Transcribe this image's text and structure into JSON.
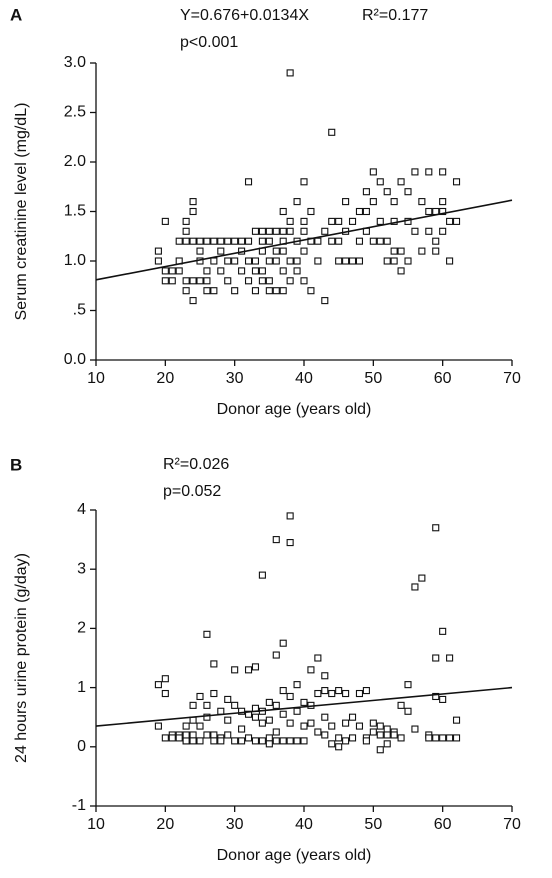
{
  "chart_data": [
    {
      "type": "scatter",
      "panel": "A",
      "annotations": [
        "Y=0.676+0.0134X",
        "R²=0.177",
        "p<0.001"
      ],
      "x_label": "Donor age (years old)",
      "y_label": "Serum creatinine level (mg/dL)",
      "xlim": [
        10,
        70
      ],
      "xticks": [
        10,
        20,
        30,
        40,
        50,
        60,
        70
      ],
      "ylim": [
        0,
        3
      ],
      "yticks": [
        {
          "value": 0,
          "label": "0.0"
        },
        {
          "value": 0.5,
          "label": ".5"
        },
        {
          "value": 1,
          "label": "1.0"
        },
        {
          "value": 1.5,
          "label": "1.5"
        },
        {
          "value": 2,
          "label": "2.0"
        },
        2.5,
        {
          "value": 3,
          "label": "3.0"
        }
      ],
      "x": [
        19,
        19,
        20,
        20,
        20,
        21,
        21,
        22,
        22,
        22,
        23,
        23,
        23,
        23,
        23,
        24,
        24,
        24,
        24,
        24,
        25,
        25,
        25,
        25,
        26,
        26,
        26,
        26,
        27,
        27,
        27,
        28,
        28,
        28,
        29,
        29,
        29,
        30,
        30,
        30,
        31,
        31,
        31,
        32,
        32,
        32,
        32,
        33,
        33,
        33,
        33,
        34,
        34,
        34,
        34,
        34,
        35,
        35,
        35,
        35,
        35,
        36,
        36,
        36,
        36,
        37,
        37,
        37,
        37,
        37,
        37,
        38,
        38,
        38,
        38,
        38,
        39,
        39,
        39,
        39,
        40,
        40,
        40,
        40,
        40,
        41,
        41,
        41,
        42,
        42,
        43,
        43,
        44,
        44,
        44,
        45,
        45,
        45,
        46,
        46,
        46,
        47,
        47,
        48,
        48,
        48,
        49,
        49,
        49,
        50,
        50,
        50,
        51,
        51,
        51,
        52,
        52,
        52,
        53,
        53,
        53,
        53,
        54,
        54,
        54,
        55,
        55,
        55,
        56,
        56,
        57,
        57,
        58,
        58,
        58,
        59,
        59,
        59,
        60,
        60,
        60,
        60,
        61,
        61,
        62,
        62
      ],
      "values": [
        1.1,
        1.0,
        1.4,
        0.9,
        0.8,
        0.8,
        0.9,
        0.9,
        1.0,
        1.2,
        1.3,
        1.4,
        1.2,
        0.7,
        0.8,
        1.5,
        1.6,
        1.2,
        0.8,
        0.6,
        1.1,
        1.0,
        0.8,
        1.2,
        1.2,
        0.9,
        0.8,
        0.7,
        1.2,
        1.0,
        0.7,
        1.2,
        1.1,
        0.9,
        1.2,
        1.0,
        0.8,
        1.2,
        1.0,
        0.7,
        1.2,
        1.1,
        0.9,
        1.8,
        1.2,
        1.0,
        0.8,
        1.3,
        1.0,
        0.9,
        0.7,
        1.3,
        1.2,
        1.1,
        0.9,
        0.8,
        1.3,
        1.2,
        1.0,
        0.8,
        0.7,
        1.3,
        1.1,
        1.0,
        0.7,
        1.5,
        1.3,
        1.2,
        1.1,
        0.9,
        0.7,
        2.9,
        1.4,
        1.3,
        1.0,
        0.8,
        1.6,
        1.2,
        1.0,
        0.9,
        1.8,
        1.4,
        1.3,
        1.1,
        0.8,
        1.5,
        1.2,
        0.7,
        1.2,
        1.0,
        1.3,
        0.6,
        2.3,
        1.4,
        1.2,
        1.4,
        1.2,
        1.0,
        1.6,
        1.3,
        1.0,
        1.4,
        1.0,
        1.5,
        1.2,
        1.0,
        1.7,
        1.5,
        1.3,
        1.9,
        1.6,
        1.2,
        1.8,
        1.4,
        1.2,
        1.7,
        1.2,
        1.0,
        1.6,
        1.4,
        1.1,
        1.0,
        1.8,
        1.1,
        0.9,
        1.7,
        1.4,
        1.0,
        1.9,
        1.3,
        1.6,
        1.1,
        1.9,
        1.5,
        1.3,
        1.5,
        1.2,
        1.1,
        1.9,
        1.6,
        1.5,
        1.3,
        1.4,
        1.0,
        1.8,
        1.4
      ],
      "trend_x": [
        10,
        70
      ],
      "trend_y": [
        0.81,
        1.614
      ]
    },
    {
      "type": "scatter",
      "panel": "B",
      "annotations": [
        "R²=0.026",
        "p=0.052"
      ],
      "x_label": "Donor age (years old)",
      "y_label": "24 hours urine protein (g/day)",
      "xlim": [
        10,
        70
      ],
      "xticks": [
        10,
        20,
        30,
        40,
        50,
        60,
        70
      ],
      "ylim": [
        -1,
        4
      ],
      "yticks": [
        -1,
        0,
        1,
        2,
        3,
        4
      ],
      "x": [
        19,
        19,
        20,
        20,
        20,
        21,
        21,
        22,
        22,
        23,
        23,
        23,
        23,
        24,
        24,
        24,
        24,
        25,
        25,
        25,
        26,
        26,
        26,
        26,
        27,
        27,
        27,
        27,
        28,
        28,
        28,
        29,
        29,
        29,
        30,
        30,
        30,
        31,
        31,
        31,
        32,
        32,
        32,
        33,
        33,
        33,
        33,
        34,
        34,
        34,
        34,
        35,
        35,
        35,
        35,
        36,
        36,
        36,
        36,
        36,
        37,
        37,
        37,
        37,
        38,
        38,
        38,
        38,
        38,
        39,
        39,
        39,
        40,
        40,
        40,
        41,
        41,
        41,
        42,
        42,
        42,
        43,
        43,
        43,
        43,
        44,
        44,
        44,
        45,
        45,
        45,
        46,
        46,
        46,
        47,
        47,
        48,
        48,
        49,
        49,
        49,
        50,
        50,
        51,
        51,
        51,
        52,
        52,
        52,
        53,
        53,
        54,
        54,
        55,
        55,
        56,
        56,
        57,
        58,
        58,
        59,
        59,
        59,
        59,
        60,
        60,
        60,
        61,
        61,
        62,
        62
      ],
      "values": [
        1.05,
        0.35,
        1.15,
        0.9,
        0.15,
        0.2,
        0.15,
        0.2,
        0.15,
        0.35,
        0.1,
        0.1,
        0.2,
        0.7,
        0.45,
        0.2,
        0.1,
        0.85,
        0.35,
        0.1,
        1.9,
        0.7,
        0.5,
        0.2,
        1.4,
        0.9,
        0.2,
        0.1,
        0.6,
        0.15,
        0.1,
        0.8,
        0.45,
        0.2,
        1.3,
        0.7,
        0.1,
        0.6,
        0.3,
        0.1,
        1.3,
        0.55,
        0.15,
        1.35,
        0.65,
        0.5,
        0.1,
        2.9,
        0.6,
        0.4,
        0.1,
        0.75,
        0.45,
        0.15,
        0.05,
        3.5,
        1.55,
        0.7,
        0.25,
        0.1,
        1.75,
        0.95,
        0.55,
        0.1,
        3.9,
        3.45,
        0.85,
        0.4,
        0.1,
        1.05,
        0.6,
        0.1,
        0.75,
        0.35,
        0.1,
        1.3,
        0.7,
        0.4,
        1.5,
        0.9,
        0.25,
        1.2,
        0.95,
        0.5,
        0.2,
        0.9,
        0.35,
        0.05,
        0.95,
        0.15,
        0.0,
        0.9,
        0.4,
        0.1,
        0.5,
        0.15,
        0.9,
        0.35,
        0.95,
        0.15,
        0.1,
        0.4,
        0.25,
        0.35,
        0.2,
        -0.05,
        0.3,
        0.2,
        0.05,
        0.25,
        0.2,
        0.7,
        0.15,
        1.05,
        0.6,
        2.7,
        0.3,
        2.85,
        0.2,
        0.15,
        3.7,
        1.5,
        0.85,
        0.15,
        1.95,
        0.8,
        0.15,
        1.5,
        0.15,
        0.45,
        0.15
      ],
      "trend_x": [
        10,
        70
      ],
      "trend_y": [
        0.35,
        1.0
      ]
    }
  ]
}
